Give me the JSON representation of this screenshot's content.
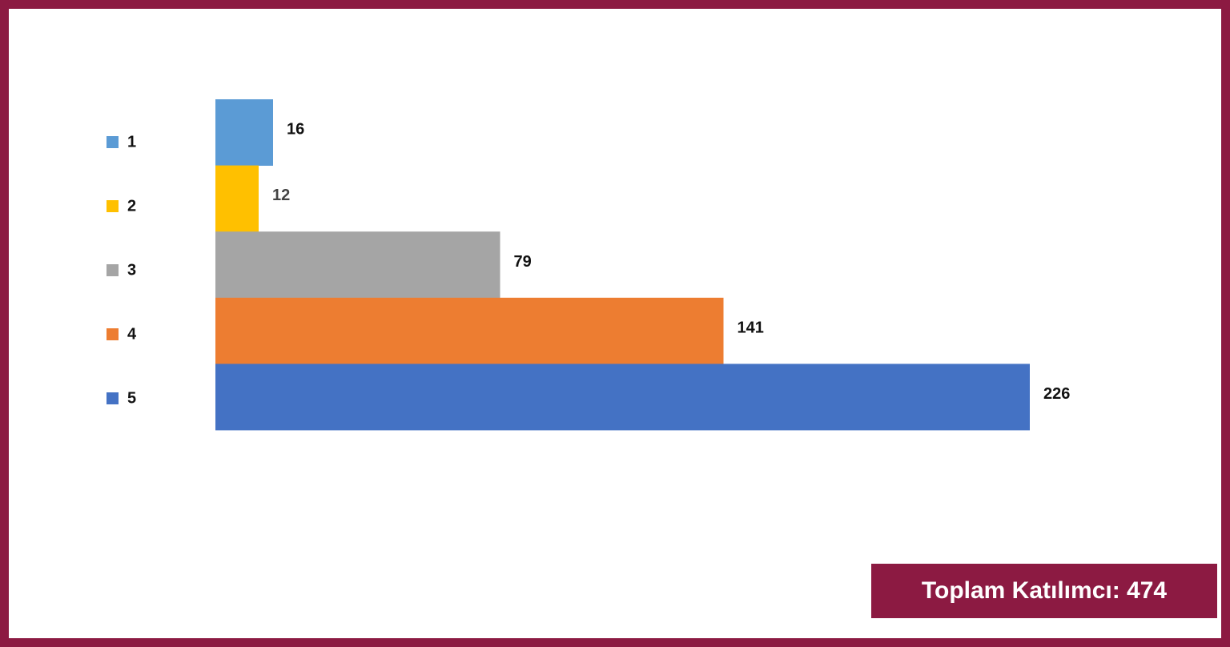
{
  "chart_data": {
    "type": "bar",
    "orientation": "horizontal",
    "categories": [
      "1",
      "2",
      "3",
      "4",
      "5"
    ],
    "values": [
      16,
      12,
      79,
      141,
      226
    ],
    "colors": [
      "#5B9BD5",
      "#FFC000",
      "#A5A5A5",
      "#ED7D31",
      "#4472C4"
    ],
    "label_colors": [
      "#111111",
      "#444444",
      "#111111",
      "#111111",
      "#111111"
    ],
    "xlim": [
      0,
      226
    ],
    "grid": false,
    "legend_position": "left"
  },
  "summary": {
    "total_label": "Toplam Katılımcı: 474"
  },
  "colors": {
    "frame": "#8C1A42",
    "badge_text": "#ffffff"
  }
}
